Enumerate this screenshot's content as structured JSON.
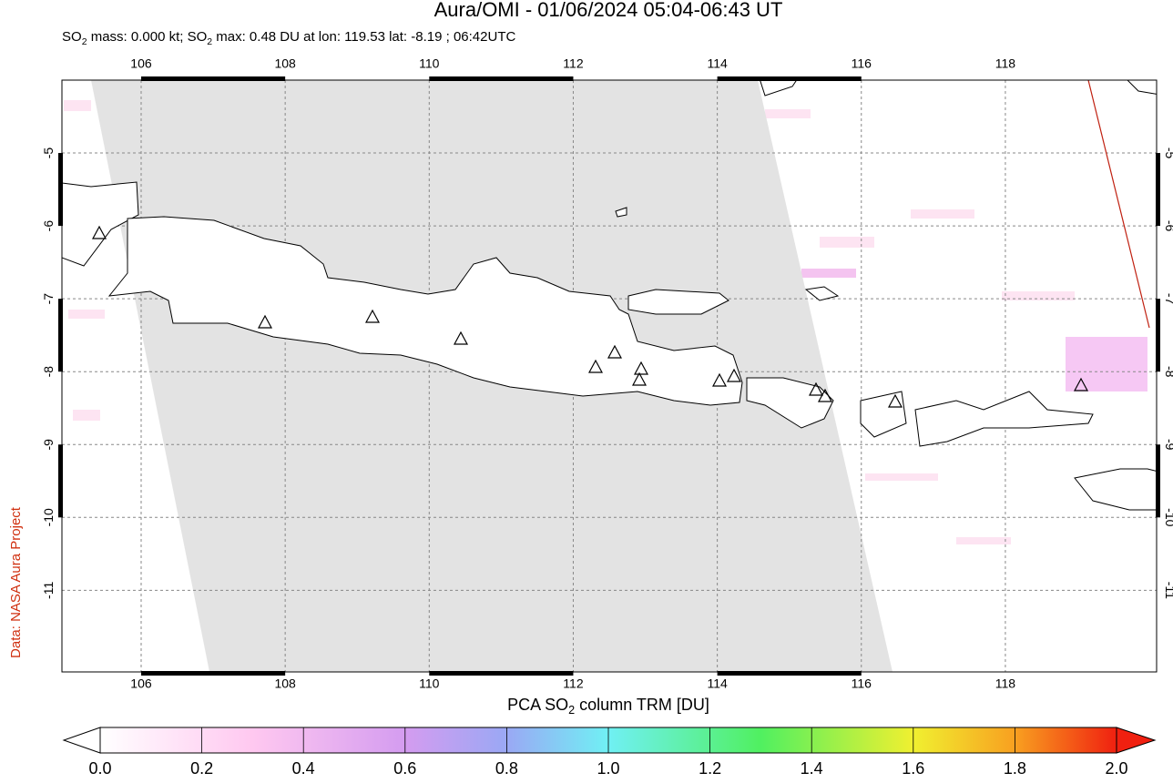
{
  "header": {
    "title": "Aura/OMI - 01/06/2024 05:04-06:43 UT",
    "subtitle": [
      "SO",
      "2",
      " mass: 0.000 kt; SO",
      "2",
      " max: 0.48 DU at lon: 119.53 lat: -8.19 ; 06:42UTC"
    ]
  },
  "credit": "Data: NASA Aura Project",
  "map": {
    "lonlim": [
      104.9,
      120.1
    ],
    "latlim": [
      -4.0,
      -12.12
    ],
    "lon_ticks": [
      106,
      108,
      110,
      112,
      114,
      116,
      118
    ],
    "lat_ticks": [
      -5,
      -6,
      -7,
      -8,
      -9,
      -10,
      -11
    ],
    "grid": true
  },
  "colorbar": {
    "label": [
      "PCA SO",
      "2",
      " column TRM [DU]"
    ],
    "range": [
      0,
      2
    ],
    "ticks": [
      {
        "value": 0,
        "label": "0.0"
      },
      {
        "value": 0.2,
        "label": "0.2"
      },
      {
        "value": 0.4,
        "label": "0.4"
      },
      {
        "value": 0.6,
        "label": "0.6"
      },
      {
        "value": 0.8,
        "label": "0.8"
      },
      {
        "value": 1,
        "label": "1.0"
      },
      {
        "value": 1.2,
        "label": "1.2"
      },
      {
        "value": 1.4,
        "label": "1.4"
      },
      {
        "value": 1.6,
        "label": "1.6"
      },
      {
        "value": 1.8,
        "label": "1.8"
      },
      {
        "value": 2,
        "label": "2.0"
      }
    ]
  }
}
